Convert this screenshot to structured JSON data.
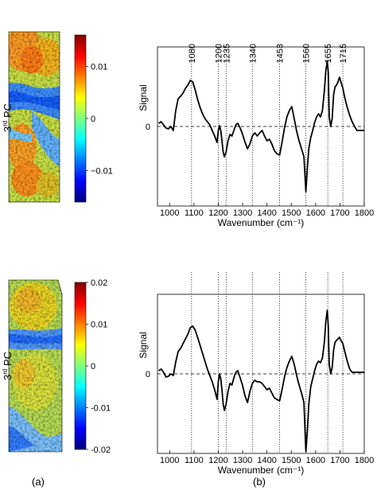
{
  "figure": {
    "panel_label_a": "(a)",
    "panel_label_b": "(b)",
    "colors": {
      "spectrum_line": "#000000",
      "guide_line": "#000000",
      "colormap": [
        "#00007f",
        "#0000ff",
        "#007fff",
        "#00ffff",
        "#7fff7f",
        "#ffff00",
        "#ff7f00",
        "#ff0000",
        "#7f0000"
      ]
    }
  },
  "maps": [
    {
      "pc_label": "3",
      "pc_label_sup": "rd",
      "pc_label_suffix": " PC",
      "colorbar_ticks": [
        "0.01",
        "0",
        "−0.01"
      ],
      "colorbar_tick_values": [
        0.01,
        0,
        -0.01
      ],
      "colorbar_range": [
        -0.016,
        0.016
      ]
    },
    {
      "pc_label": "3",
      "pc_label_sup": "rd",
      "pc_label_suffix": " PC",
      "colorbar_ticks": [
        "0.02",
        "0.01",
        "0",
        "-0.01",
        "-0.02"
      ],
      "colorbar_tick_values": [
        0.02,
        0.01,
        0,
        -0.01,
        -0.02
      ],
      "colorbar_range": [
        -0.02,
        0.02
      ]
    }
  ],
  "chart_data": [
    {
      "type": "line",
      "xlabel": "Wavenumber (cm⁻¹)",
      "ylabel": "Signal",
      "xlim": [
        950,
        1800
      ],
      "xticks": [
        1000,
        1100,
        1200,
        1300,
        1400,
        1500,
        1600,
        1700,
        1800
      ],
      "xtick_labels": [
        "1000",
        "1100",
        "1200",
        "1300",
        "1400",
        "1500",
        "1600",
        "1700",
        "1800"
      ],
      "ylim": [
        -1.0,
        1.0
      ],
      "y_zero_label": "0",
      "y_zero_dashed": true,
      "grid": false,
      "annotations": [
        "1080",
        "1200",
        "1235",
        "1340",
        "1453",
        "1560",
        "1655",
        "1715"
      ],
      "annotation_positions": [
        1090,
        1200,
        1232,
        1340,
        1452,
        1560,
        1650,
        1712
      ],
      "series": [
        {
          "x": [
            955,
            965,
            975,
            985,
            995,
            1005,
            1015,
            1025,
            1035,
            1045,
            1055,
            1065,
            1075,
            1085,
            1095,
            1105,
            1115,
            1125,
            1135,
            1145,
            1155,
            1165,
            1175,
            1185,
            1195,
            1200,
            1205,
            1210,
            1215,
            1220,
            1225,
            1232,
            1240,
            1248,
            1256,
            1264,
            1272,
            1280,
            1290,
            1300,
            1310,
            1320,
            1330,
            1340,
            1350,
            1360,
            1370,
            1380,
            1390,
            1400,
            1410,
            1420,
            1430,
            1440,
            1452,
            1462,
            1472,
            1482,
            1492,
            1502,
            1512,
            1522,
            1532,
            1542,
            1552,
            1560,
            1566,
            1572,
            1580,
            1588,
            1596,
            1604,
            1612,
            1620,
            1628,
            1636,
            1642,
            1648,
            1652,
            1656,
            1662,
            1668,
            1674,
            1680,
            1686,
            1692,
            1698,
            1704,
            1712,
            1720,
            1730,
            1740,
            1750,
            1760,
            1770,
            1780,
            1790,
            1800
          ],
          "values": [
            0.04,
            0.06,
            0.02,
            -0.02,
            -0.03,
            0.0,
            -0.05,
            0.2,
            0.35,
            0.38,
            0.42,
            0.48,
            0.52,
            0.58,
            0.56,
            0.46,
            0.34,
            0.24,
            0.16,
            0.1,
            0.06,
            0.02,
            -0.05,
            -0.12,
            -0.2,
            -0.05,
            0.01,
            -0.05,
            -0.18,
            -0.32,
            -0.38,
            -0.32,
            -0.18,
            -0.1,
            -0.12,
            -0.05,
            0.02,
            0.04,
            -0.02,
            -0.1,
            -0.2,
            -0.28,
            -0.22,
            -0.12,
            -0.08,
            -0.12,
            -0.08,
            -0.05,
            -0.12,
            -0.18,
            -0.16,
            -0.22,
            -0.3,
            -0.34,
            -0.36,
            -0.2,
            -0.02,
            0.12,
            0.2,
            0.25,
            0.1,
            -0.06,
            -0.18,
            -0.28,
            -0.38,
            -0.82,
            -0.52,
            -0.28,
            -0.14,
            -0.05,
            0.05,
            0.12,
            0.16,
            0.12,
            0.2,
            0.45,
            0.7,
            0.82,
            0.68,
            0.12,
            0.0,
            0.1,
            0.4,
            0.5,
            0.52,
            0.56,
            0.62,
            0.56,
            0.48,
            0.36,
            0.24,
            0.14,
            0.06,
            0.0,
            -0.05,
            -0.05,
            -0.05,
            -0.05
          ]
        }
      ]
    },
    {
      "type": "line",
      "xlabel": "Wavenumber (cm⁻¹)",
      "ylabel": "Signal",
      "xlim": [
        950,
        1800
      ],
      "xticks": [
        1000,
        1100,
        1200,
        1300,
        1400,
        1500,
        1600,
        1700,
        1800
      ],
      "xtick_labels": [
        "1000",
        "1100",
        "1200",
        "1300",
        "1400",
        "1500",
        "1600",
        "1700",
        "1800"
      ],
      "ylim": [
        -1.0,
        1.0
      ],
      "y_zero_label": "0",
      "y_zero_dashed": true,
      "grid": false,
      "annotations": [],
      "annotation_positions": [
        1090,
        1200,
        1232,
        1340,
        1452,
        1560,
        1650,
        1712
      ],
      "series": [
        {
          "x": [
            955,
            965,
            975,
            985,
            995,
            1005,
            1015,
            1025,
            1035,
            1045,
            1055,
            1065,
            1075,
            1085,
            1095,
            1105,
            1115,
            1125,
            1135,
            1145,
            1155,
            1165,
            1175,
            1185,
            1195,
            1200,
            1205,
            1210,
            1215,
            1220,
            1225,
            1232,
            1240,
            1248,
            1256,
            1264,
            1272,
            1280,
            1290,
            1300,
            1310,
            1320,
            1330,
            1340,
            1350,
            1360,
            1370,
            1380,
            1390,
            1400,
            1410,
            1420,
            1430,
            1440,
            1452,
            1462,
            1472,
            1482,
            1492,
            1502,
            1512,
            1522,
            1532,
            1542,
            1552,
            1560,
            1566,
            1572,
            1580,
            1588,
            1596,
            1604,
            1612,
            1620,
            1628,
            1636,
            1642,
            1648,
            1652,
            1656,
            1662,
            1668,
            1674,
            1680,
            1686,
            1692,
            1698,
            1704,
            1712,
            1720,
            1730,
            1740,
            1750,
            1760,
            1770,
            1780,
            1790,
            1800
          ],
          "values": [
            0.04,
            0.06,
            0.02,
            -0.04,
            -0.03,
            0.0,
            -0.02,
            0.15,
            0.28,
            0.32,
            0.38,
            0.44,
            0.5,
            0.58,
            0.6,
            0.55,
            0.46,
            0.36,
            0.26,
            0.16,
            0.06,
            -0.02,
            -0.1,
            -0.2,
            -0.32,
            -0.1,
            0.0,
            -0.06,
            -0.2,
            -0.38,
            -0.46,
            -0.38,
            -0.22,
            -0.12,
            -0.14,
            -0.05,
            0.02,
            0.04,
            -0.05,
            -0.15,
            -0.28,
            -0.36,
            -0.22,
            -0.12,
            -0.08,
            -0.1,
            -0.1,
            -0.12,
            -0.16,
            -0.2,
            -0.18,
            -0.24,
            -0.3,
            -0.32,
            -0.34,
            -0.2,
            -0.04,
            0.08,
            0.16,
            0.22,
            0.12,
            -0.02,
            -0.14,
            -0.24,
            -0.36,
            -0.98,
            -0.72,
            -0.38,
            -0.16,
            -0.06,
            0.04,
            0.12,
            0.16,
            0.14,
            0.2,
            0.4,
            0.66,
            0.8,
            0.6,
            0.12,
            0.0,
            0.08,
            0.3,
            0.4,
            0.42,
            0.44,
            0.46,
            0.42,
            0.38,
            0.28,
            0.16,
            0.06,
            0.02,
            0.02,
            0.02,
            0.02,
            0.02,
            0.02
          ]
        }
      ]
    }
  ]
}
